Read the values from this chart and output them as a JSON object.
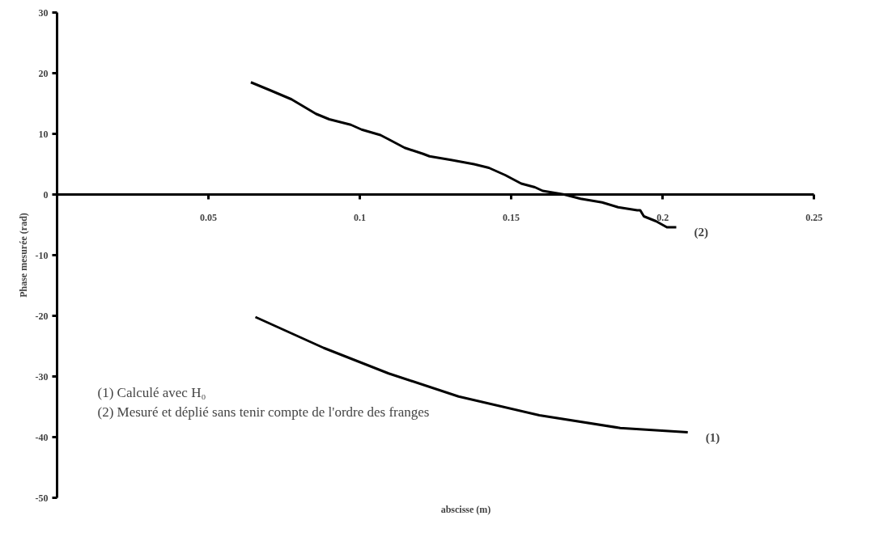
{
  "chart_data": {
    "type": "line",
    "xlabel": "abscisse (m)",
    "ylabel": "Phase mesurée (rad)",
    "xlim": [
      0,
      0.25
    ],
    "ylim": [
      -50,
      30
    ],
    "xticks": [
      0.05,
      0.1,
      0.15,
      0.2,
      0.25
    ],
    "yticks": [
      -50,
      -40,
      -30,
      -20,
      -10,
      0,
      10,
      20,
      30
    ],
    "grid": false,
    "marker": "none",
    "line_style": "solid",
    "series": [
      {
        "color": "#000000",
        "x": [
          0.0655,
          0.0881,
          0.1095,
          0.1326,
          0.1593,
          0.186,
          0.2083
        ],
        "values": [
          -20.2,
          -25.3,
          -29.5,
          -33.3,
          -36.4,
          -38.5,
          -39.2
        ]
      },
      {
        "color": "#000000",
        "x": [
          0.064,
          0.0703,
          0.0774,
          0.0855,
          0.0899,
          0.097,
          0.1006,
          0.1068,
          0.1095,
          0.1148,
          0.1209,
          0.123,
          0.1301,
          0.1377,
          0.1426,
          0.148,
          0.1533,
          0.1578,
          0.1604,
          0.1675,
          0.1729,
          0.18,
          0.1853,
          0.1916,
          0.1926,
          0.1938,
          0.1978,
          0.2014,
          0.2045
        ],
        "values": [
          18.5,
          17.2,
          15.7,
          13.3,
          12.4,
          11.5,
          10.7,
          9.8,
          9.1,
          7.7,
          6.7,
          6.3,
          5.7,
          5.0,
          4.4,
          3.2,
          1.8,
          1.2,
          0.6,
          0,
          -0.7,
          -1.3,
          -2.1,
          -2.6,
          -2.6,
          -3.6,
          -4.4,
          -5.4,
          -5.4
        ]
      }
    ],
    "annotations": [
      {
        "text": "(1)",
        "x": 0.2083,
        "y": -39.2
      },
      {
        "text": "(2)",
        "x": 0.2045,
        "y": -5.4
      },
      "(1)    Calculé avec H₀",
      "(2)    Mesuré et déplié sans tenir compte de l'ordre des franges"
    ]
  }
}
